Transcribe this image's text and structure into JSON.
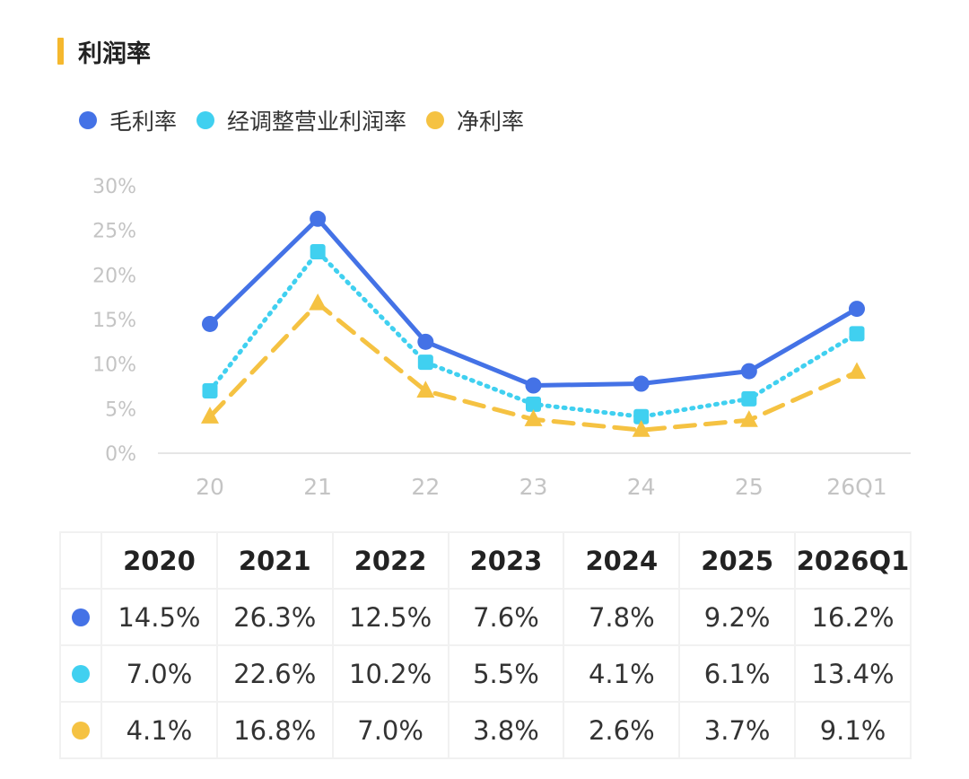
{
  "header": {
    "title": "利润率"
  },
  "chart_data": {
    "type": "line",
    "categories": [
      "20",
      "21",
      "22",
      "23",
      "24",
      "25",
      "26Q1"
    ],
    "ylim": [
      0,
      30
    ],
    "yticks": [
      0,
      5,
      10,
      15,
      20,
      25,
      30
    ],
    "ytick_labels": [
      "0%",
      "5%",
      "10%",
      "15%",
      "20%",
      "25%",
      "30%"
    ],
    "grid": false,
    "legend": "top-left",
    "series": [
      {
        "name": "毛利率",
        "color": "#4472e6",
        "style": "solid",
        "marker": "circle",
        "values": [
          14.5,
          26.3,
          12.5,
          7.6,
          7.8,
          9.2,
          16.2
        ]
      },
      {
        "name": "经调整营业利润率",
        "color": "#40d0f0",
        "style": "dotted",
        "marker": "square",
        "values": [
          7.0,
          22.6,
          10.2,
          5.5,
          4.1,
          6.1,
          13.4
        ]
      },
      {
        "name": "净利率",
        "color": "#f5c242",
        "style": "dashed",
        "marker": "triangle",
        "values": [
          4.1,
          16.8,
          7.0,
          3.8,
          2.6,
          3.7,
          9.1
        ]
      }
    ]
  },
  "table": {
    "headers": [
      "2020",
      "2021",
      "2022",
      "2023",
      "2024",
      "2025",
      "2026Q1"
    ],
    "rows": [
      {
        "color": "#4472e6",
        "cells": [
          "14.5%",
          "26.3%",
          "12.5%",
          "7.6%",
          "7.8%",
          "9.2%",
          "16.2%"
        ]
      },
      {
        "color": "#40d0f0",
        "cells": [
          "7.0%",
          "22.6%",
          "10.2%",
          "5.5%",
          "4.1%",
          "6.1%",
          "13.4%"
        ]
      },
      {
        "color": "#f5c242",
        "cells": [
          "4.1%",
          "16.8%",
          "7.0%",
          "3.8%",
          "2.6%",
          "3.7%",
          "9.1%"
        ]
      }
    ]
  }
}
